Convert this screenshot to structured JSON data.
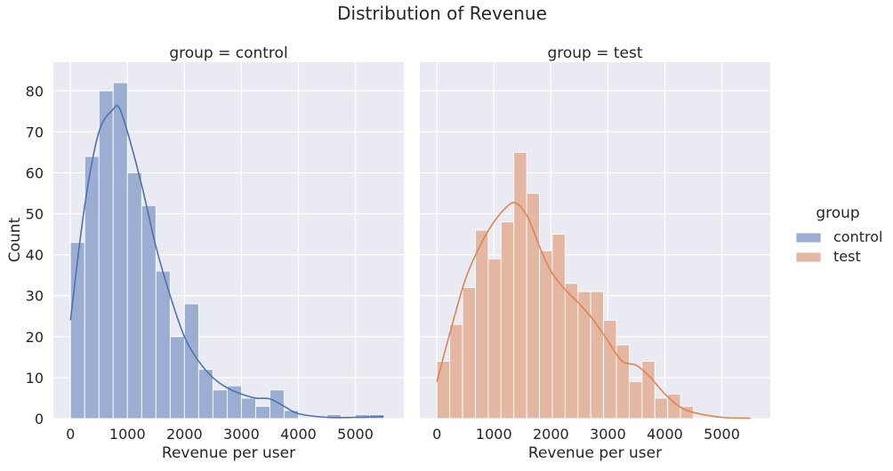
{
  "chart_data": {
    "type": "bar",
    "title": "Distribution of Revenue",
    "xlabel": "Revenue per user",
    "ylabel": "Count",
    "xlim": [
      -300,
      5850
    ],
    "ylim": [
      0,
      87
    ],
    "xticks": [
      0,
      1000,
      2000,
      3000,
      4000,
      5000
    ],
    "yticks": [
      0,
      10,
      20,
      30,
      40,
      50,
      60,
      70,
      80
    ],
    "grid": true,
    "legend": {
      "title": "group",
      "placement": "right",
      "entries": [
        {
          "label": "control",
          "color": "#4c72b0"
        },
        {
          "label": "test",
          "color": "#dd8452"
        }
      ]
    },
    "panels": [
      {
        "title": "group = control",
        "series_name": "control",
        "color": "#4c72b0",
        "bin_width": 250,
        "bin_starts": [
          0,
          250,
          500,
          750,
          1000,
          1250,
          1500,
          1750,
          2000,
          2250,
          2500,
          2750,
          3000,
          3250,
          3500,
          3750,
          4000,
          4250,
          4500,
          4750,
          5000,
          5250
        ],
        "counts": [
          43,
          64,
          80,
          82,
          60,
          52,
          36,
          20,
          28,
          12,
          7,
          8,
          5,
          3,
          7,
          2,
          0,
          0,
          1,
          0,
          1,
          1
        ],
        "kde": {
          "x": [
            0,
            250,
            500,
            750,
            850,
            1000,
            1250,
            1500,
            1750,
            2000,
            2250,
            2500,
            2750,
            3000,
            3250,
            3500,
            3750,
            4000,
            4500,
            5000,
            5500
          ],
          "y": [
            24,
            52,
            70,
            75.5,
            76,
            70,
            57,
            42,
            30,
            20,
            14,
            10,
            7.5,
            6,
            5,
            4.8,
            3,
            1.2,
            0.3,
            0.3,
            0.5
          ]
        }
      },
      {
        "title": "group = test",
        "series_name": "test",
        "color": "#dd8452",
        "bin_width": 225,
        "bin_starts": [
          0,
          225,
          450,
          675,
          900,
          1125,
          1350,
          1575,
          1800,
          2025,
          2250,
          2475,
          2700,
          2925,
          3150,
          3375,
          3600,
          3825,
          4050,
          4275
        ],
        "counts": [
          14,
          23,
          32,
          46,
          39,
          48,
          65,
          55,
          41,
          45,
          33,
          31,
          31,
          24,
          18,
          9,
          14,
          5,
          6,
          3
        ],
        "kde": {
          "x": [
            0,
            250,
            500,
            750,
            1000,
            1250,
            1400,
            1600,
            1800,
            2000,
            2250,
            2500,
            2750,
            3000,
            3250,
            3500,
            3750,
            4000,
            4250,
            4500,
            5000,
            5500
          ],
          "y": [
            9,
            22,
            34,
            42,
            48,
            52,
            52.5,
            49,
            42,
            36,
            31.5,
            28,
            24,
            19,
            14,
            13,
            10,
            6,
            3,
            1.5,
            0.3,
            0.1
          ]
        }
      }
    ]
  }
}
